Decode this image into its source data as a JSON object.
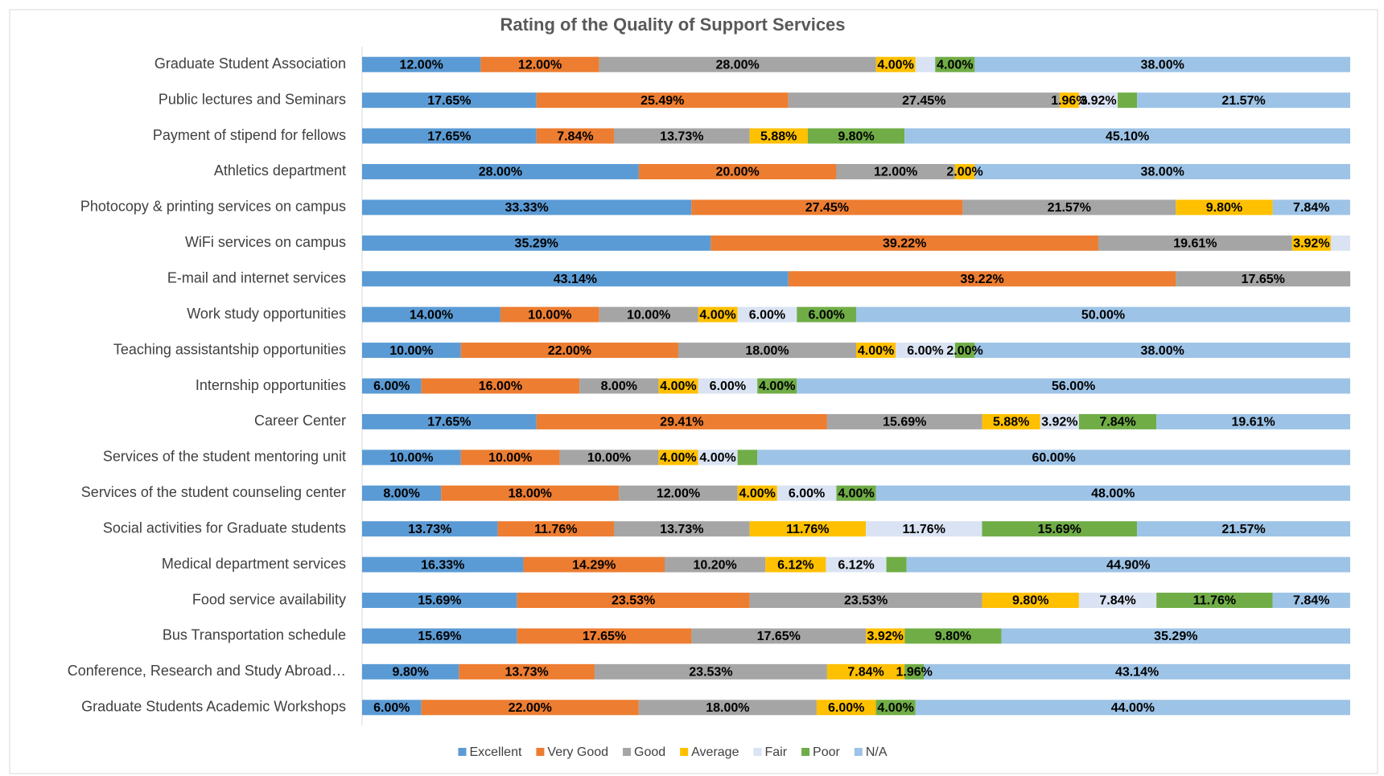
{
  "chart_data": {
    "type": "stacked_barh",
    "title": "Rating of the Quality of Support Services",
    "categories": [
      "Graduate Student Association",
      "Public lectures and Seminars",
      "Payment of stipend for fellows",
      "Athletics department",
      "Photocopy & printing services on campus",
      "WiFi  services on campus",
      "E-mail and internet services",
      "Work study opportunities",
      "Teaching assistantship opportunities",
      "Internship opportunities",
      "Career Center",
      "Services of the student mentoring unit",
      "Services of the student counseling center",
      "Social activities for Graduate students",
      "Medical department services",
      "Food service availability",
      "Bus Transportation schedule",
      "Conference, Research and Study Abroad…",
      "Graduate Students Academic Workshops"
    ],
    "xlim": [
      0,
      100
    ],
    "legend": "bottom",
    "series": [
      {
        "name": "Excellent",
        "color": "#5b9bd5",
        "values": [
          12,
          17.65,
          17.65,
          28,
          33.33,
          35.29,
          43.14,
          14,
          10,
          6,
          17.65,
          10,
          8,
          13.73,
          16.33,
          15.69,
          15.69,
          9.8,
          6
        ],
        "value_labels": [
          "12.00%",
          "17.65%",
          "17.65%",
          "28.00%",
          "33.33%",
          "35.29%",
          "43.14%",
          "14.00%",
          "10.00%",
          "6.00%",
          "17.65%",
          "10.00%",
          "8.00%",
          "13.73%",
          "16.33%",
          "15.69%",
          "15.69%",
          "9.80%",
          "6.00%"
        ]
      },
      {
        "name": "Very Good",
        "color": "#ed7d31",
        "values": [
          12,
          25.49,
          7.84,
          20,
          27.45,
          39.22,
          39.22,
          10,
          22,
          16,
          29.41,
          10,
          18,
          11.76,
          14.29,
          23.53,
          17.65,
          13.73,
          22
        ],
        "value_labels": [
          "12.00%",
          "25.49%",
          "7.84%",
          "20.00%",
          "27.45%",
          "39.22%",
          "39.22%",
          "10.00%",
          "22.00%",
          "16.00%",
          "29.41%",
          "10.00%",
          "18.00%",
          "11.76%",
          "14.29%",
          "23.53%",
          "17.65%",
          "13.73%",
          "22.00%"
        ]
      },
      {
        "name": "Good",
        "color": "#a5a5a5",
        "values": [
          28,
          27.45,
          13.73,
          12,
          21.57,
          19.61,
          17.65,
          10,
          18,
          8,
          15.69,
          10,
          12,
          13.73,
          10.2,
          23.53,
          17.65,
          23.53,
          18
        ],
        "value_labels": [
          "28.00%",
          "27.45%",
          "13.73%",
          "12.00%",
          "21.57%",
          "19.61%",
          "17.65%",
          "10.00%",
          "18.00%",
          "8.00%",
          "15.69%",
          "10.00%",
          "12.00%",
          "13.73%",
          "10.20%",
          "23.53%",
          "17.65%",
          "23.53%",
          "18.00%"
        ]
      },
      {
        "name": "Average",
        "color": "#ffc000",
        "values": [
          4,
          1.96,
          5.88,
          2,
          9.8,
          3.92,
          0,
          4,
          4,
          4,
          5.88,
          4,
          4,
          11.76,
          6.12,
          9.8,
          3.92,
          7.84,
          6
        ],
        "value_labels": [
          "4.00%",
          "1.96%",
          "5.88%",
          "2.00%",
          "9.80%",
          "3.92%",
          null,
          "4.00%",
          "4.00%",
          "4.00%",
          "5.88%",
          "4.00%",
          "4.00%",
          "11.76%",
          "6.12%",
          "9.80%",
          "3.92%",
          "7.84%",
          "6.00%"
        ]
      },
      {
        "name": "Fair",
        "color": "#dae3f3",
        "values": [
          2,
          3.92,
          0,
          0,
          0,
          1.96,
          0,
          6,
          6,
          6,
          3.92,
          4,
          6,
          11.76,
          6.12,
          7.84,
          0,
          0,
          0
        ],
        "value_labels": [
          null,
          "3.92%",
          null,
          null,
          null,
          null,
          null,
          "6.00%",
          "6.00%",
          "6.00%",
          "3.92%",
          "4.00%",
          "6.00%",
          "11.76%",
          "6.12%",
          "7.84%",
          null,
          null,
          null
        ]
      },
      {
        "name": "Poor",
        "color": "#70ad47",
        "values": [
          4,
          1.96,
          9.8,
          0,
          0,
          0,
          0,
          6,
          2,
          4,
          7.84,
          2,
          4,
          15.69,
          2.04,
          11.76,
          9.8,
          1.96,
          4
        ],
        "value_labels": [
          "4.00%",
          null,
          "9.80%",
          null,
          null,
          null,
          null,
          "6.00%",
          "2.00%",
          "4.00%",
          "7.84%",
          null,
          "4.00%",
          "15.69%",
          null,
          "11.76%",
          "9.80%",
          "1.96%",
          "4.00%"
        ]
      },
      {
        "name": "N/A",
        "color": "#9dc3e6",
        "values": [
          38,
          21.57,
          45.1,
          38,
          7.84,
          0,
          0,
          50,
          38,
          56,
          19.61,
          60,
          48,
          21.57,
          44.9,
          7.84,
          35.29,
          43.14,
          44
        ],
        "value_labels": [
          "38.00%",
          "21.57%",
          "45.10%",
          "38.00%",
          "7.84%",
          null,
          null,
          "50.00%",
          "38.00%",
          "56.00%",
          "19.61%",
          "60.00%",
          "48.00%",
          "21.57%",
          "44.90%",
          "7.84%",
          "35.29%",
          "43.14%",
          "44.00%"
        ]
      }
    ]
  }
}
